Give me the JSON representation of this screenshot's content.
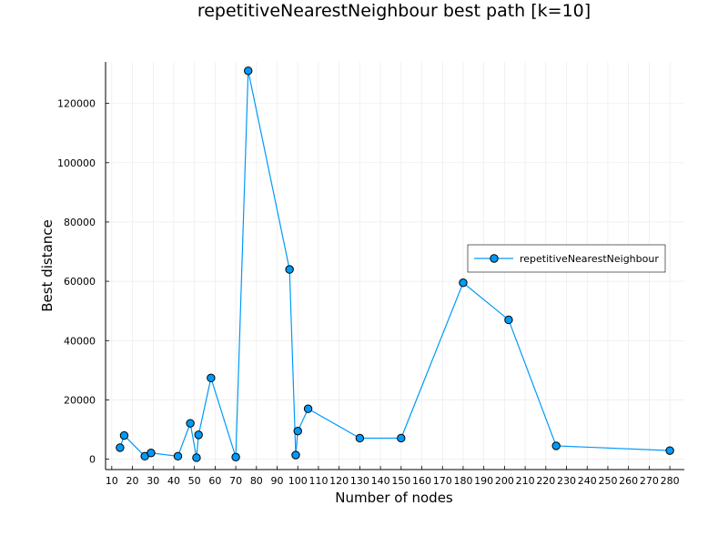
{
  "chart_data": {
    "type": "line",
    "title": "repetitiveNearestNeighbour best path [k=10]",
    "xlabel": "Number of nodes",
    "ylabel": "Best distance",
    "xlim": [
      7,
      287
    ],
    "ylim": [
      -3500,
      134000
    ],
    "xticks": [
      10,
      20,
      30,
      40,
      50,
      60,
      70,
      80,
      90,
      100,
      110,
      120,
      130,
      140,
      150,
      160,
      170,
      180,
      190,
      200,
      210,
      220,
      230,
      240,
      250,
      260,
      270,
      280
    ],
    "yticks": [
      0,
      20000,
      40000,
      60000,
      80000,
      100000,
      120000
    ],
    "grid": true,
    "legend_position": "right",
    "colors": {
      "series": "#009af9",
      "marker_edge": "#000000",
      "grid": "#e8e8e8",
      "axis": "#000000"
    },
    "series": [
      {
        "name": "repetitiveNearestNeighbour",
        "x": [
          14,
          16,
          26,
          29,
          42,
          48,
          51,
          52,
          58,
          70,
          76,
          96,
          99,
          100,
          105,
          130,
          150,
          180,
          202,
          225,
          280
        ],
        "y": [
          3900,
          8000,
          1000,
          2100,
          1000,
          12100,
          500,
          8200,
          27400,
          700,
          131000,
          64000,
          1400,
          9500,
          17000,
          7100,
          7100,
          59500,
          47000,
          4500,
          2900
        ]
      }
    ]
  }
}
